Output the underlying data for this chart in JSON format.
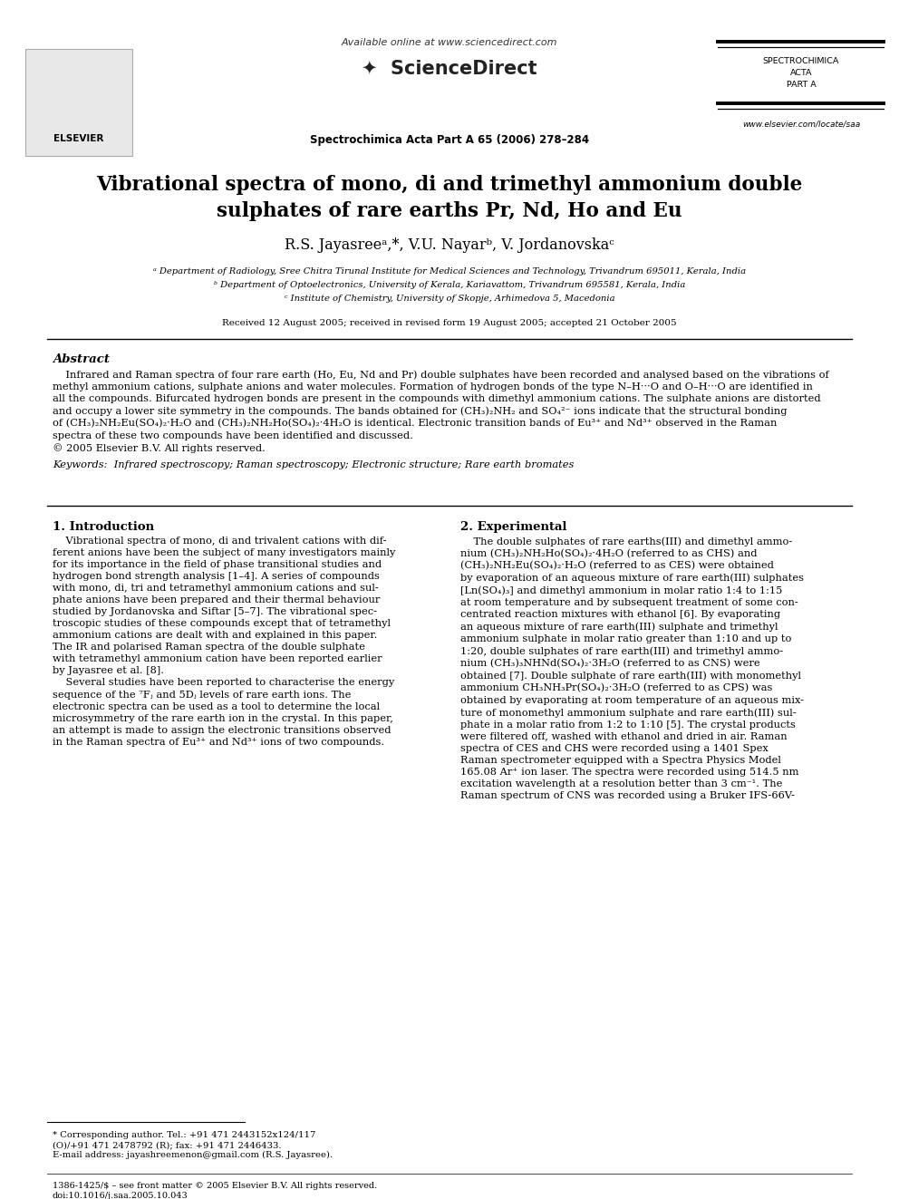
{
  "bg_color": "#ffffff",
  "header_available_text": "Available online at www.sciencedirect.com",
  "journal_name_top_right": [
    "SPECTROCHIMICA",
    "ACTA",
    "PART A"
  ],
  "journal_bottom": "www.elsevier.com/locate/saa",
  "journal_ref": "Spectrochimica Acta Part A 65 (2006) 278–284",
  "title": "Vibrational spectra of mono, di and trimethyl ammonium double\nsulphates of rare earths Pr, Nd, Ho and Eu",
  "authors": "R.S. Jayasreeᵃ,*, V.U. Nayarᵇ, V. Jordanovskaᶜ",
  "affil_a": "ᵃ Department of Radiology, Sree Chitra Tirunal Institute for Medical Sciences and Technology, Trivandrum 695011, Kerala, India",
  "affil_b": "ᵇ Department of Optoelectronics, University of Kerala, Kariavattom, Trivandrum 695581, Kerala, India",
  "affil_c": "ᶜ Institute of Chemistry, University of Skopje, Arhimedova 5, Macedonia",
  "received": "Received 12 August 2005; received in revised form 19 August 2005; accepted 21 October 2005",
  "abstract_title": "Abstract",
  "keywords_label": "Keywords:",
  "keywords_text": "Infrared spectroscopy; Raman spectroscopy; Electronic structure; Rare earth bromates",
  "section1_title": "1. Introduction",
  "section2_title": "2. Experimental",
  "footnote_star": "* Corresponding author. Tel.: +91 471 2443152x124/117\n(O)/+91 471 2478792 (R); fax: +91 471 2446433.\nE-mail address: jayashreemenon@gmail.com (R.S. Jayasree).",
  "footer_left": "1386-1425/$ – see front matter © 2005 Elsevier B.V. All rights reserved.\ndoi:10.1016/j.saa.2005.10.043",
  "abstract_lines": [
    "    Infrared and Raman spectra of four rare earth (Ho, Eu, Nd and Pr) double sulphates have been recorded and analysed based on the vibrations of",
    "methyl ammonium cations, sulphate anions and water molecules. Formation of hydrogen bonds of the type N–H···O and O–H···O are identified in",
    "all the compounds. Bifurcated hydrogen bonds are present in the compounds with dimethyl ammonium cations. The sulphate anions are distorted",
    "and occupy a lower site symmetry in the compounds. The bands obtained for (CH₃)₂NH₂ and SO₄²⁻ ions indicate that the structural bonding",
    "of (CH₃)₂NH₂Eu(SO₄)₂·H₂O and (CH₃)₂NH₂Ho(SO₄)₂·4H₂O is identical. Electronic transition bands of Eu³⁺ and Nd³⁺ observed in the Raman",
    "spectra of these two compounds have been identified and discussed.",
    "© 2005 Elsevier B.V. All rights reserved."
  ],
  "intro_text": "    Vibrational spectra of mono, di and trivalent cations with dif-\nferent anions have been the subject of many investigators mainly\nfor its importance in the field of phase transitional studies and\nhydrogen bond strength analysis [1–4]. A series of compounds\nwith mono, di, tri and tetramethyl ammonium cations and sul-\nphate anions have been prepared and their thermal behaviour\nstudied by Jordanovska and Siftar [5–7]. The vibrational spec-\ntroscopic studies of these compounds except that of tetramethyl\nammonium cations are dealt with and explained in this paper.\nThe IR and polarised Raman spectra of the double sulphate\nwith tetramethyl ammonium cation have been reported earlier\nby Jayasree et al. [8].\n    Several studies have been reported to characterise the energy\nsequence of the ⁷Fⱼ and 5Dⱼ levels of rare earth ions. The\nelectronic spectra can be used as a tool to determine the local\nmicrosymmetry of the rare earth ion in the crystal. In this paper,\nan attempt is made to assign the electronic transitions observed\nin the Raman spectra of Eu³⁺ and Nd³⁺ ions of two compounds.",
  "exp_text": "    The double sulphates of rare earths(III) and dimethyl ammo-\nnium (CH₃)₂NH₂Ho(SO₄)₂·4H₂O (referred to as CHS) and\n(CH₃)₂NH₂Eu(SO₄)₂·H₂O (referred to as CES) were obtained\nby evaporation of an aqueous mixture of rare earth(III) sulphates\n[Ln(SO₄)₃] and dimethyl ammonium in molar ratio 1:4 to 1:15\nat room temperature and by subsequent treatment of some con-\ncentrated reaction mixtures with ethanol [6]. By evaporating\nan aqueous mixture of rare earth(III) sulphate and trimethyl\nammonium sulphate in molar ratio greater than 1:10 and up to\n1:20, double sulphates of rare earth(III) and trimethyl ammo-\nnium (CH₃)₃NHNd(SO₄)₂·3H₂O (referred to as CNS) were\nobtained [7]. Double sulphate of rare earth(III) with monomethyl\nammonium CH₃NH₃Pr(SO₄)₂·3H₂O (referred to as CPS) was\nobtained by evaporating at room temperature of an aqueous mix-\nture of monomethyl ammonium sulphate and rare earth(III) sul-\nphate in a molar ratio from 1:2 to 1:10 [5]. The crystal products\nwere filtered off, washed with ethanol and dried in air. Raman\nspectra of CES and CHS were recorded using a 1401 Spex\nRaman spectrometer equipped with a Spectra Physics Model\n165.08 Ar⁺ ion laser. The spectra were recorded using 514.5 nm\nexcitation wavelength at a resolution better than 3 cm⁻¹. The\nRaman spectrum of CNS was recorded using a Bruker IFS-66V-"
}
